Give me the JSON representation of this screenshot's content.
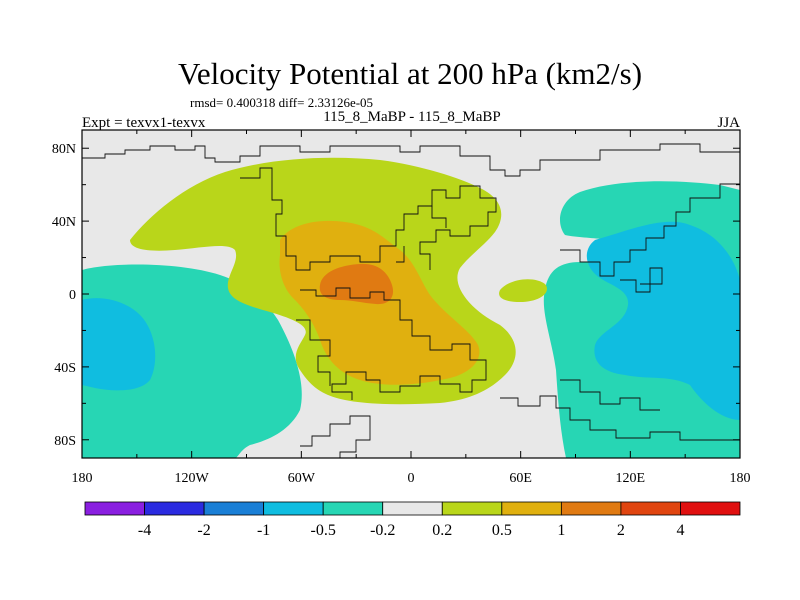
{
  "chart_data": {
    "type": "heatmap",
    "title": "Velocity Potential at 200 hPa (km2/s)",
    "stats_text": "rmsd= 0.400318 diff= 2.33126e-05",
    "left_label": "Expt = texvx1-texvx",
    "center_label": "115_8_MaBP - 115_8_MaBP",
    "right_label": "JJA",
    "x_ticks": [
      "180",
      "120W",
      "60W",
      "0",
      "60E",
      "120E",
      "180"
    ],
    "x_tick_values": [
      -180,
      -120,
      -60,
      0,
      60,
      120,
      180
    ],
    "y_ticks": [
      "80N",
      "40N",
      "0",
      "40S",
      "80S"
    ],
    "y_tick_values": [
      80,
      40,
      0,
      -40,
      -80
    ],
    "xlim": [
      -180,
      180
    ],
    "ylim": [
      -90,
      90
    ],
    "colorbar": {
      "labels": [
        "-4",
        "-2",
        "-1",
        "-0.5",
        "-0.2",
        "0.2",
        "0.5",
        "1",
        "2",
        "4"
      ],
      "colors": [
        "#8a1fe0",
        "#2b2be0",
        "#1a7fd6",
        "#10bde0",
        "#27d6b4",
        "#e8e8e8",
        "#b9d61a",
        "#e0b00f",
        "#e07a12",
        "#e04510",
        "#e01010"
      ]
    },
    "field_colors": {
      "background": "#e8e8e8",
      "neg_weak": "#27d6b4",
      "neg_moderate": "#10bde0",
      "pos_weak": "#b9d61a",
      "pos_moderate": "#e0b00f",
      "pos_strong": "#e07a12"
    }
  }
}
